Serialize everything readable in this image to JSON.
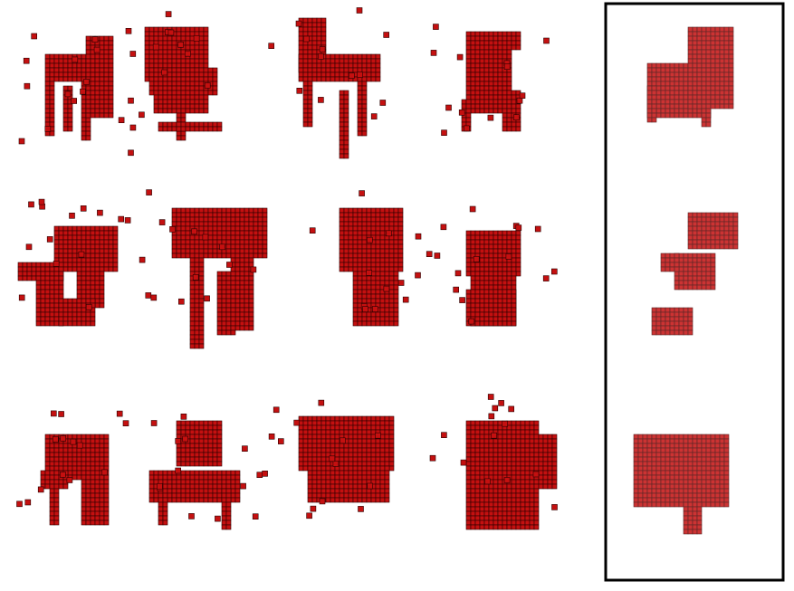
{
  "figure": {
    "grid_rows": 3,
    "grid_cols": 4,
    "side_panel_count": 3,
    "colors": {
      "voxel_fill": "#c41010",
      "voxel_edge": "#2a0000",
      "panel_border": "#000000",
      "background": "#ffffff"
    },
    "object_category": "chair",
    "grid_cells": [
      {
        "id": "r1c1",
        "shape": "chair-plain"
      },
      {
        "id": "r1c2",
        "shape": "chair-office"
      },
      {
        "id": "r1c3",
        "shape": "chair-armchair"
      },
      {
        "id": "r1c4",
        "shape": "chair-tall-back"
      },
      {
        "id": "r2c1",
        "shape": "chair-broken"
      },
      {
        "id": "r2c2",
        "shape": "table-round"
      },
      {
        "id": "r2c3",
        "shape": "toilet-like"
      },
      {
        "id": "r2c4",
        "shape": "bear-like"
      },
      {
        "id": "r3c1",
        "shape": "chair-small"
      },
      {
        "id": "r3c2",
        "shape": "chair-armrest"
      },
      {
        "id": "r3c3",
        "shape": "sofa-chair"
      },
      {
        "id": "r3c4",
        "shape": "armchair-wide"
      }
    ],
    "side_panel": [
      {
        "id": "p1",
        "shape": "chair-blurred"
      },
      {
        "id": "p2",
        "shape": "fragmented-blurred"
      },
      {
        "id": "p3",
        "shape": "lounge-blurred"
      }
    ]
  }
}
